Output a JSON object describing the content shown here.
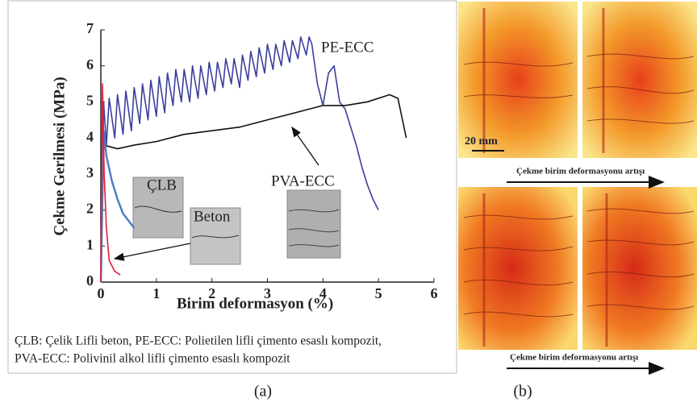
{
  "chart_data": {
    "type": "line",
    "y_label": "Çekme Gerilmesi (MPa)",
    "x_label": "Birim deformasyon (%)",
    "xlim": [
      0,
      6
    ],
    "ylim": [
      0,
      7
    ],
    "xticks": [
      0,
      1,
      2,
      3,
      4,
      5,
      6
    ],
    "yticks": [
      0,
      1,
      2,
      3,
      4,
      5,
      6,
      7
    ],
    "series": [
      {
        "name": "PE-ECC",
        "color": "#3a3f9c",
        "x": [
          0,
          0.05,
          0.1,
          0.15,
          0.25,
          0.3,
          0.4,
          0.45,
          0.55,
          0.6,
          0.7,
          0.75,
          0.85,
          0.9,
          1.0,
          1.05,
          1.15,
          1.2,
          1.3,
          1.35,
          1.45,
          1.5,
          1.6,
          1.65,
          1.75,
          1.8,
          1.9,
          1.95,
          2.05,
          2.1,
          2.2,
          2.25,
          2.35,
          2.4,
          2.5,
          2.55,
          2.65,
          2.7,
          2.8,
          2.85,
          2.95,
          3.0,
          3.1,
          3.15,
          3.25,
          3.3,
          3.4,
          3.45,
          3.55,
          3.6,
          3.7,
          3.75,
          3.8,
          3.9,
          4.0,
          4.1,
          4.2,
          4.3,
          4.4,
          4.5,
          4.6,
          4.7,
          4.8,
          4.9,
          5.0
        ],
        "values": [
          0,
          5.0,
          3.8,
          5.1,
          4.0,
          5.2,
          4.1,
          5.3,
          4.2,
          5.4,
          4.4,
          5.5,
          4.5,
          5.6,
          4.6,
          5.7,
          4.7,
          5.8,
          4.9,
          5.9,
          5.0,
          5.9,
          5.0,
          6.0,
          5.1,
          6.0,
          5.2,
          6.1,
          5.3,
          6.1,
          5.4,
          6.2,
          5.5,
          6.2,
          5.4,
          6.3,
          5.6,
          6.4,
          5.7,
          6.5,
          5.8,
          6.6,
          5.9,
          6.6,
          6.0,
          6.7,
          6.1,
          6.7,
          6.2,
          6.8,
          6.3,
          6.8,
          6.6,
          5.5,
          4.9,
          5.8,
          6.0,
          5.0,
          4.8,
          4.3,
          3.8,
          3.2,
          2.7,
          2.3,
          2.0
        ]
      },
      {
        "name": "PVA-ECC",
        "color": "#111111",
        "x": [
          0,
          0.05,
          0.3,
          0.6,
          1.0,
          1.5,
          2.0,
          2.5,
          3.0,
          3.5,
          4.0,
          4.4,
          4.8,
          5.2,
          5.35,
          5.5
        ],
        "values": [
          0,
          3.8,
          3.7,
          3.8,
          3.9,
          4.1,
          4.2,
          4.3,
          4.5,
          4.7,
          4.9,
          4.9,
          5.0,
          5.2,
          5.1,
          4.0
        ]
      },
      {
        "name": "ÇLB",
        "color": "#4f7fc2",
        "x": [
          0,
          0.05,
          0.1,
          0.2,
          0.3,
          0.4,
          0.5,
          0.6
        ],
        "values": [
          0,
          4.2,
          3.5,
          2.8,
          2.3,
          1.9,
          1.7,
          1.5
        ]
      },
      {
        "name": "Beton",
        "color": "#e0203a",
        "x": [
          0,
          0.03,
          0.06,
          0.1,
          0.15,
          0.25,
          0.35
        ],
        "values": [
          0,
          5.5,
          3.0,
          1.5,
          0.6,
          0.3,
          0.2
        ]
      }
    ]
  },
  "caption": [
    "ÇLB: Çelik Lifli beton, PE-ECC: Polietilen lifli çimento esaslı kompozit,",
    "PVA-ECC: Polivinil alkol lifli çimento esaslı kompozit"
  ],
  "panel_labels": [
    "(a)",
    "(b)"
  ],
  "panel_b": {
    "scale_label": "20 mm",
    "arrow_labels": [
      "Çekme birim deformasyonu artışı",
      "Çekme birim deformasyonu artışı"
    ]
  }
}
